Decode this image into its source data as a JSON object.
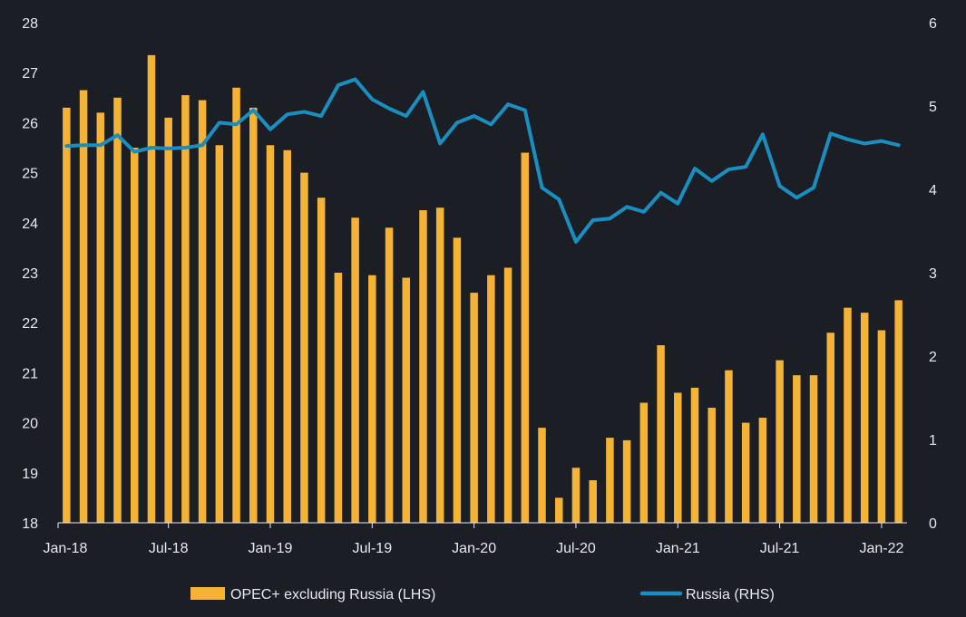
{
  "chart_data": {
    "type": "bar+line",
    "title": "",
    "x_labels": [
      "Jan-18",
      "Jul-18",
      "Jan-19",
      "Jul-19",
      "Jan-20",
      "Jul-20",
      "Jan-21",
      "Jul-21",
      "Jan-22"
    ],
    "x_label_month_index": [
      0,
      6,
      12,
      18,
      24,
      30,
      36,
      42,
      48
    ],
    "y_left": {
      "min": 18,
      "max": 28,
      "ticks": [
        18,
        19,
        20,
        21,
        22,
        23,
        24,
        25,
        26,
        27,
        28
      ]
    },
    "y_right": {
      "min": 0,
      "max": 6,
      "ticks": [
        0,
        1,
        2,
        3,
        4,
        5,
        6
      ]
    },
    "series": [
      {
        "name": "OPEC+ excluding Russia (LHS)",
        "type": "bar",
        "axis": "left",
        "color": "#f5b335",
        "values": [
          26.3,
          26.65,
          26.2,
          26.5,
          25.5,
          27.35,
          26.1,
          26.55,
          26.45,
          25.55,
          26.7,
          26.3,
          25.55,
          25.45,
          25.0,
          24.5,
          23.0,
          24.1,
          22.95,
          23.9,
          22.9,
          24.25,
          24.3,
          23.7,
          22.6,
          22.95,
          23.1,
          25.4,
          19.9,
          18.5,
          19.1,
          18.85,
          19.7,
          19.65,
          20.4,
          21.55,
          20.6,
          20.7,
          20.3,
          21.05,
          20.0,
          20.1,
          21.25,
          20.95,
          20.95,
          21.8,
          22.3,
          22.2,
          21.85,
          22.45
        ]
      },
      {
        "name": "Russia (RHS)",
        "type": "line",
        "axis": "right",
        "color": "#1a8fbf",
        "values": [
          4.52,
          4.53,
          4.53,
          4.65,
          4.45,
          4.5,
          4.49,
          4.5,
          4.53,
          4.8,
          4.78,
          4.95,
          4.72,
          4.9,
          4.93,
          4.88,
          5.25,
          5.32,
          5.08,
          4.97,
          4.88,
          5.17,
          4.55,
          4.8,
          4.88,
          4.78,
          5.02,
          4.95,
          4.02,
          3.88,
          3.37,
          3.63,
          3.65,
          3.79,
          3.73,
          3.96,
          3.83,
          4.25,
          4.1,
          4.24,
          4.27,
          4.66,
          4.04,
          3.9,
          4.02,
          4.67,
          4.6,
          4.55,
          4.58,
          4.53
        ]
      }
    ],
    "legend_position": "bottom"
  }
}
